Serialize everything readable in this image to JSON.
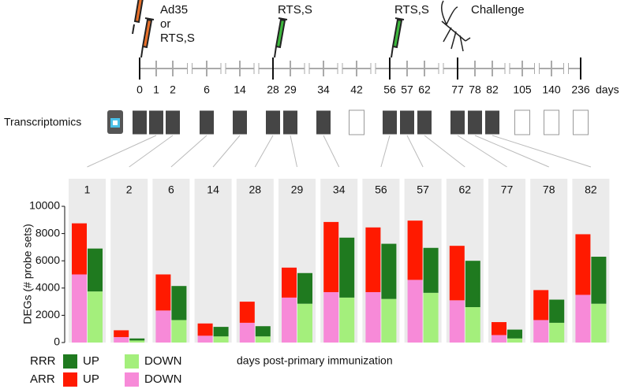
{
  "chart_data": {
    "type": "stacked-bar-panels",
    "timeline": {
      "categories": [
        0,
        1,
        2,
        6,
        14,
        28,
        29,
        34,
        42,
        56,
        57,
        62,
        77,
        78,
        82,
        105,
        140,
        236
      ],
      "unit": "days",
      "sampled": [
        true,
        true,
        true,
        true,
        true,
        true,
        true,
        true,
        false,
        true,
        true,
        true,
        true,
        true,
        true,
        false,
        false,
        false
      ],
      "events": [
        {
          "index": 0,
          "icon": "syringe",
          "labels": [
            {
              "text": "Ad35",
              "color": "#e8702a"
            },
            {
              "text": "or",
              "color": "#111111"
            },
            {
              "text": "RTS,S",
              "color": "#3db83d"
            }
          ]
        },
        {
          "index": 5,
          "icon": "syringe",
          "labels": [
            {
              "text": "RTS,S",
              "color": "#3db83d"
            }
          ]
        },
        {
          "index": 9,
          "icon": "syringe",
          "labels": [
            {
              "text": "RTS,S",
              "color": "#3db83d"
            }
          ]
        },
        {
          "index": 12,
          "icon": "mosquito",
          "labels": [
            {
              "text": "Challenge",
              "color": "#111111"
            }
          ]
        }
      ]
    },
    "transcriptomics_label": "Transcriptomics",
    "panels": [
      1,
      2,
      6,
      14,
      28,
      29,
      34,
      56,
      57,
      62,
      77,
      78,
      82
    ],
    "ylabel": "DEGs (# probe sets)",
    "ylim": [
      0,
      10000
    ],
    "yticks": [
      0,
      2000,
      4000,
      6000,
      8000,
      10000
    ],
    "xlabel": "days post-primary immunization",
    "groups": [
      {
        "name": "ARR",
        "color": "#e8702a",
        "series": [
          {
            "name": "DOWN",
            "color": "#f78ad8",
            "values": [
              5000,
              400,
              2350,
              500,
              1450,
              3300,
              3700,
              3700,
              4600,
              3100,
              550,
              1650,
              3500
            ]
          },
          {
            "name": "UP",
            "color": "#ff1a00",
            "values": [
              3750,
              500,
              2650,
              900,
              1550,
              2200,
              5150,
              4750,
              4350,
              4000,
              950,
              2200,
              4450
            ]
          }
        ]
      },
      {
        "name": "RRR",
        "color": "#3db83d",
        "series": [
          {
            "name": "DOWN",
            "color": "#a4ef7c",
            "values": [
              3750,
              150,
              1650,
              450,
              450,
              2850,
              3300,
              3200,
              3650,
              2600,
              300,
              1450,
              2850
            ]
          },
          {
            "name": "UP",
            "color": "#1f7a1f",
            "values": [
              3150,
              150,
              2500,
              700,
              750,
              2250,
              4400,
              4050,
              3300,
              3400,
              650,
              1700,
              3450
            ]
          }
        ]
      }
    ]
  }
}
